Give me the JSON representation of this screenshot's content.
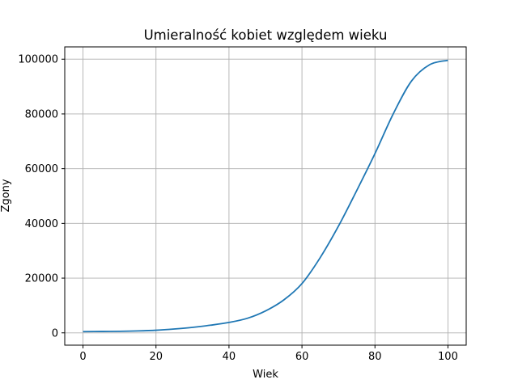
{
  "chart_data": {
    "type": "line",
    "title": "Umieralność kobiet względem wieku",
    "xlabel": "Wiek",
    "ylabel": "Zgony",
    "xlim": [
      -5,
      105
    ],
    "ylim": [
      -4500,
      104500
    ],
    "xticks": [
      0,
      20,
      40,
      60,
      80,
      100
    ],
    "yticks": [
      0,
      20000,
      40000,
      60000,
      80000,
      100000
    ],
    "grid": true,
    "color": "#1f77b4",
    "series": [
      {
        "x": [
          0,
          5,
          10,
          15,
          20,
          25,
          30,
          35,
          40,
          45,
          50,
          55,
          60,
          65,
          70,
          75,
          80,
          85,
          90,
          95,
          100
        ],
        "values": [
          450,
          500,
          550,
          700,
          950,
          1400,
          2000,
          2800,
          3800,
          5300,
          8000,
          12000,
          18000,
          27500,
          39000,
          52000,
          65500,
          80000,
          92000,
          98000,
          99600
        ]
      }
    ]
  }
}
